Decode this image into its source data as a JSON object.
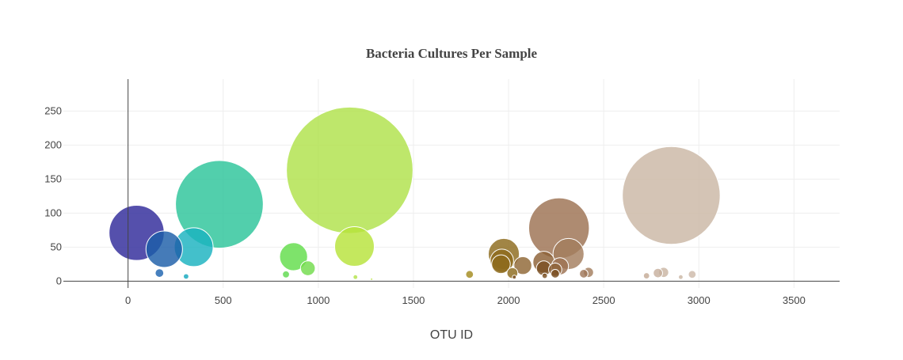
{
  "chart_data": {
    "type": "scatter",
    "subtype": "bubble",
    "title": "Bacteria Cultures Per Sample",
    "xlabel": "OTU ID",
    "ylabel": "",
    "xlim": [
      -340,
      3740
    ],
    "ylim": [
      -10,
      297
    ],
    "xticks": [
      0,
      500,
      1000,
      1500,
      2000,
      2500,
      3000,
      3500
    ],
    "yticks": [
      0,
      50,
      100,
      150,
      200,
      250
    ],
    "grid": true,
    "legend": "none",
    "colorscale": "Earth",
    "points": [
      {
        "x": 45,
        "y": 71,
        "size": 71,
        "color": "#2f2a9a"
      },
      {
        "x": 190,
        "y": 47,
        "size": 47,
        "color": "#1c5ea8"
      },
      {
        "x": 345,
        "y": 50,
        "size": 50,
        "color": "#1ab2c0"
      },
      {
        "x": 480,
        "y": 113,
        "size": 113,
        "color": "#2cc59a"
      },
      {
        "x": 870,
        "y": 36,
        "size": 36,
        "color": "#61dd4a"
      },
      {
        "x": 945,
        "y": 19,
        "size": 19,
        "color": "#72dc4c"
      },
      {
        "x": 1165,
        "y": 163,
        "size": 163,
        "color": "#b0e24a"
      },
      {
        "x": 1190,
        "y": 51,
        "size": 51,
        "color": "#b7e33a"
      },
      {
        "x": 165,
        "y": 12,
        "size": 11,
        "color": "#1f64b0"
      },
      {
        "x": 305,
        "y": 7,
        "size": 7,
        "color": "#15a8be"
      },
      {
        "x": 830,
        "y": 10,
        "size": 9,
        "color": "#5fd94f"
      },
      {
        "x": 1195,
        "y": 6,
        "size": 6,
        "color": "#b3e34a"
      },
      {
        "x": 1795,
        "y": 10,
        "size": 10,
        "color": "#a48b1e"
      },
      {
        "x": 1975,
        "y": 40,
        "size": 40,
        "color": "#8c6a1c"
      },
      {
        "x": 1965,
        "y": 30,
        "size": 30,
        "color": "#8d6a1c"
      },
      {
        "x": 1960,
        "y": 25,
        "size": 24,
        "color": "#8d6a1c"
      },
      {
        "x": 2020,
        "y": 12,
        "size": 14,
        "color": "#8c6a1c"
      },
      {
        "x": 2075,
        "y": 23,
        "size": 23,
        "color": "#8f6634"
      },
      {
        "x": 2185,
        "y": 28,
        "size": 28,
        "color": "#8c6036"
      },
      {
        "x": 2185,
        "y": 19,
        "size": 19,
        "color": "#7a4f22"
      },
      {
        "x": 2245,
        "y": 17,
        "size": 17,
        "color": "#8c6036"
      },
      {
        "x": 2245,
        "y": 11,
        "size": 11,
        "color": "#7a4f22"
      },
      {
        "x": 2265,
        "y": 78,
        "size": 78,
        "color": "#9c7252"
      },
      {
        "x": 2270,
        "y": 22,
        "size": 22,
        "color": "#9c7252"
      },
      {
        "x": 2315,
        "y": 40,
        "size": 40,
        "color": "#a47e5e"
      },
      {
        "x": 2395,
        "y": 11,
        "size": 11,
        "color": "#a0785a"
      },
      {
        "x": 2420,
        "y": 13,
        "size": 13,
        "color": "#a47e5e"
      },
      {
        "x": 2725,
        "y": 8,
        "size": 8,
        "color": "#c4ab96"
      },
      {
        "x": 2785,
        "y": 12,
        "size": 12,
        "color": "#c7b09e"
      },
      {
        "x": 2815,
        "y": 13,
        "size": 13,
        "color": "#c9b4a2"
      },
      {
        "x": 2855,
        "y": 126,
        "size": 126,
        "color": "#cbb7a5"
      },
      {
        "x": 2905,
        "y": 6,
        "size": 6,
        "color": "#cbb7a5"
      },
      {
        "x": 2965,
        "y": 10,
        "size": 10,
        "color": "#cdbaa9"
      },
      {
        "x": 2190,
        "y": 8,
        "size": 7,
        "color": "#7a4f22"
      },
      {
        "x": 2030,
        "y": 6,
        "size": 5,
        "color": "#7a4f22"
      },
      {
        "x": 1280,
        "y": 3,
        "size": 3,
        "color": "#b7e33a"
      }
    ]
  }
}
